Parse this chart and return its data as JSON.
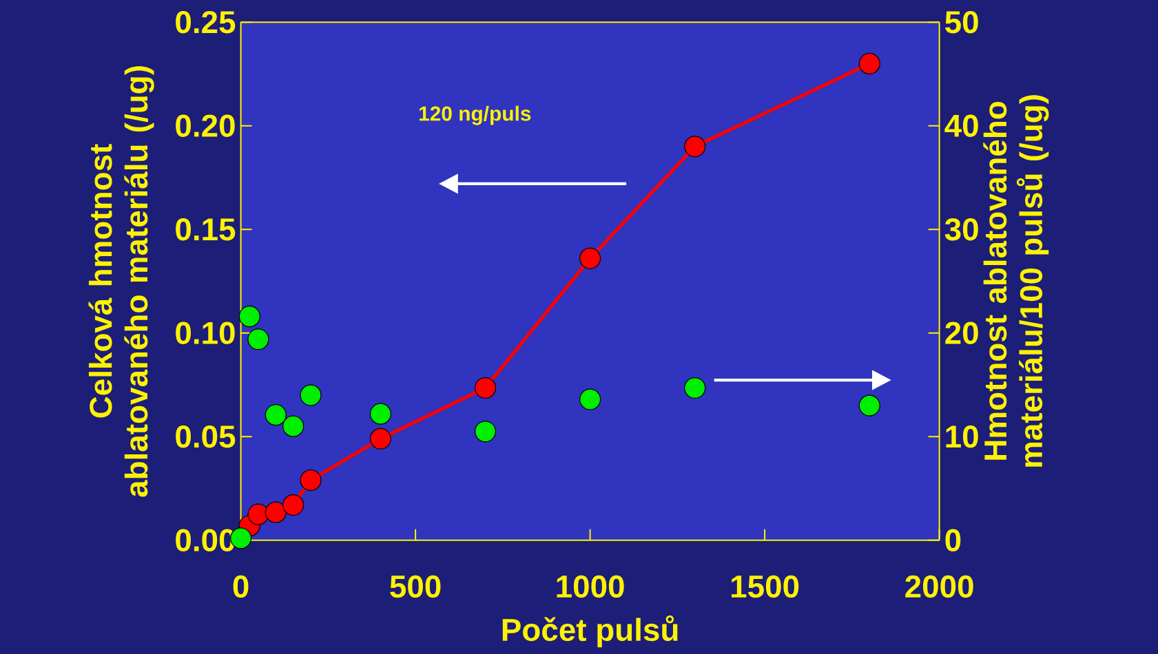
{
  "chart_data": {
    "type": "line",
    "xlabel": "Počet pulsů",
    "ylabel": "Celková hmotnost ablatovaného materiálu (/ug)",
    "y2label": "Hmotnost ablatovaného materiálu/100 pulsů (/ug)",
    "annotations": [
      "120 ng/puls"
    ],
    "xlim": [
      0,
      2000
    ],
    "xticks": [
      0,
      500,
      1000,
      1500,
      2000
    ],
    "ylim": [
      0,
      0.25
    ],
    "yticks": [
      {
        "value": 0,
        "label": "0.00"
      },
      {
        "value": 0.05,
        "label": "0.05"
      },
      {
        "value": 0.1,
        "label": "0.10"
      },
      {
        "value": 0.15,
        "label": "0.15"
      },
      {
        "value": 0.2,
        "label": "0.20"
      },
      {
        "value": 0.25,
        "label": "0.25"
      }
    ],
    "y2lim": [
      0,
      50
    ],
    "y2ticks": [
      0,
      10,
      20,
      30,
      40,
      50
    ],
    "marker": "circle",
    "grid": false,
    "series": [
      {
        "color": "#ff0000",
        "x": [
          25,
          50,
          100,
          150,
          200,
          400,
          700,
          1000,
          1300,
          1800
        ],
        "values": [
          0.007,
          0.0125,
          0.0135,
          0.017,
          0.029,
          0.049,
          0.0735,
          0.136,
          0.19,
          0.23
        ]
      },
      {
        "type": "scatter",
        "axis": "y2",
        "color": "#00ee00",
        "x": [
          0,
          25,
          50,
          100,
          150,
          200,
          400,
          700,
          1000,
          1300,
          1800
        ],
        "values": [
          0.2,
          21.6,
          19.4,
          12.1,
          11.0,
          14.0,
          12.2,
          10.5,
          13.6,
          14.7,
          13.0
        ]
      }
    ]
  }
}
